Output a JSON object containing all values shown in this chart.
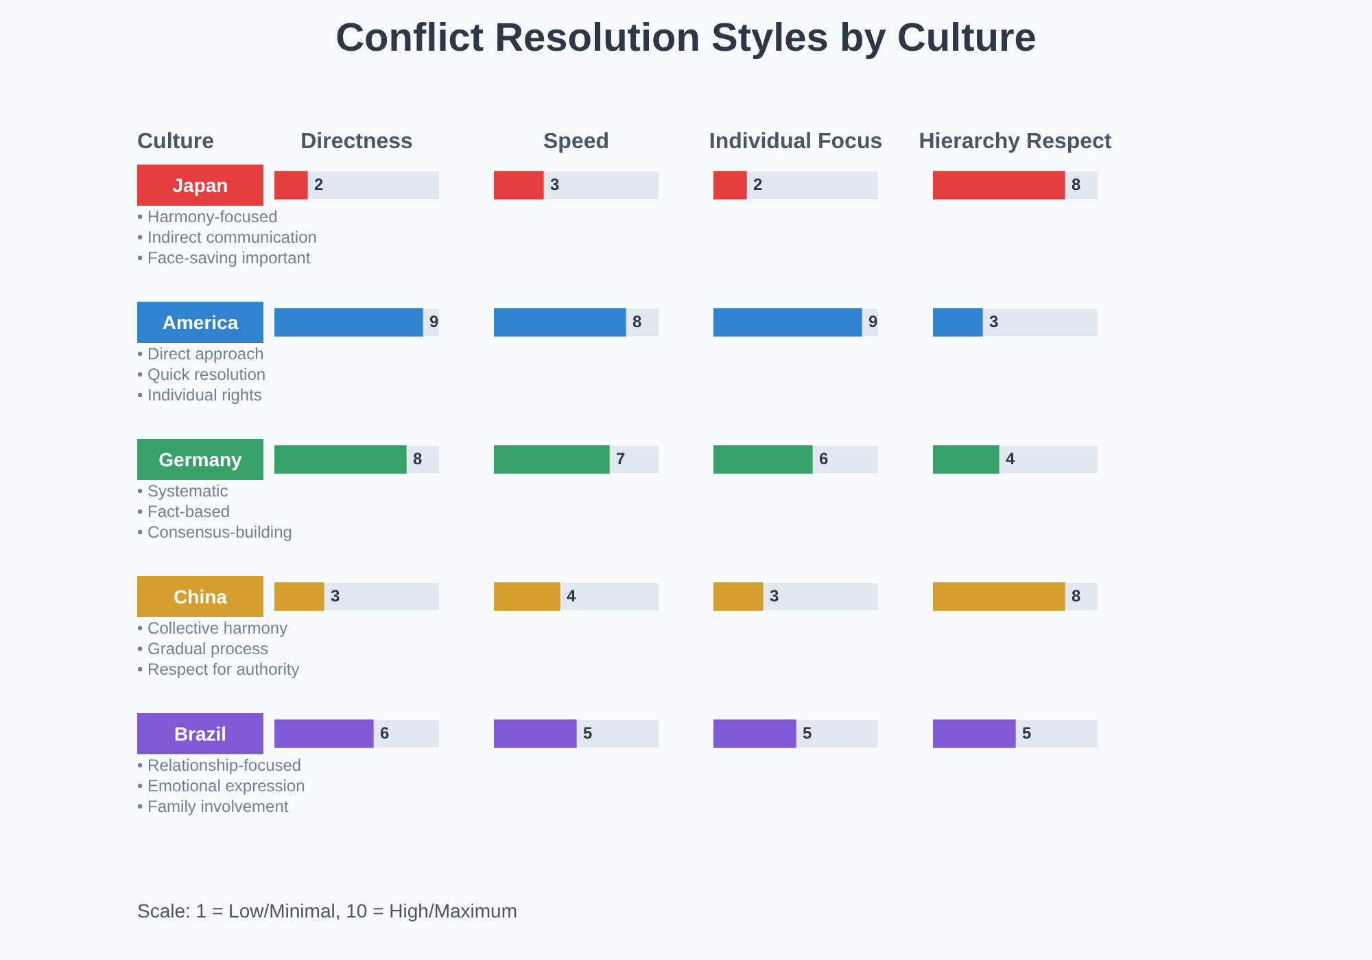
{
  "chart_data": [
    {
      "type": "other",
      "title": "Conflict Resolution Styles by Culture",
      "annotations": [
        "Culture",
        "• Harmony-focused",
        "• Indirect communication",
        "• Face-saving important",
        "• Direct approach",
        "• Quick resolution",
        "• Individual rights",
        "• Systematic",
        "• Fact-based",
        "• Consensus-building",
        "• Collective harmony",
        "• Gradual process",
        "• Respect for authority",
        "• Relationship-focused",
        "• Emotional expression",
        "• Family involvement",
        "Scale: 1 = Low/Minimal, 10 = High/Maximum"
      ]
    },
    {
      "type": "bar",
      "orientation": "horizontal",
      "title": "Directness",
      "categories": [
        "Japan",
        "America",
        "Germany",
        "China",
        "Brazil"
      ],
      "values": [
        2,
        9,
        8,
        3,
        6
      ],
      "colors": [
        "#e53e3e",
        "#3182ce",
        "#38a169",
        "#d69e2e",
        "#805ad5"
      ],
      "xlim": [
        0,
        10
      ],
      "data_labels": true,
      "tick_labels": "y"
    },
    {
      "type": "bar",
      "orientation": "horizontal",
      "title": "Speed",
      "categories": [
        null,
        null,
        null,
        null,
        null
      ],
      "values": [
        3,
        8,
        7,
        4,
        5
      ],
      "colors": [
        "#e53e3e",
        "#3182ce",
        "#38a169",
        "#d69e2e",
        "#805ad5"
      ],
      "xlim": [
        0,
        10
      ],
      "data_labels": true,
      "tick_labels": false
    },
    {
      "type": "bar",
      "orientation": "horizontal",
      "title": "Individual Focus",
      "categories": [
        null,
        null,
        null,
        null,
        null
      ],
      "values": [
        2,
        9,
        6,
        3,
        5
      ],
      "colors": [
        "#e53e3e",
        "#3182ce",
        "#38a169",
        "#d69e2e",
        "#805ad5"
      ],
      "xlim": [
        0,
        10
      ],
      "data_labels": true,
      "tick_labels": false
    },
    {
      "type": "bar",
      "orientation": "horizontal",
      "title": "Hierarchy Respect",
      "categories": [
        null,
        null,
        null,
        null,
        null
      ],
      "values": [
        8,
        3,
        4,
        8,
        5
      ],
      "colors": [
        "#e53e3e",
        "#3182ce",
        "#38a169",
        "#d69e2e",
        "#805ad5"
      ],
      "xlim": [
        0,
        10
      ],
      "data_labels": true,
      "tick_labels": false
    }
  ]
}
